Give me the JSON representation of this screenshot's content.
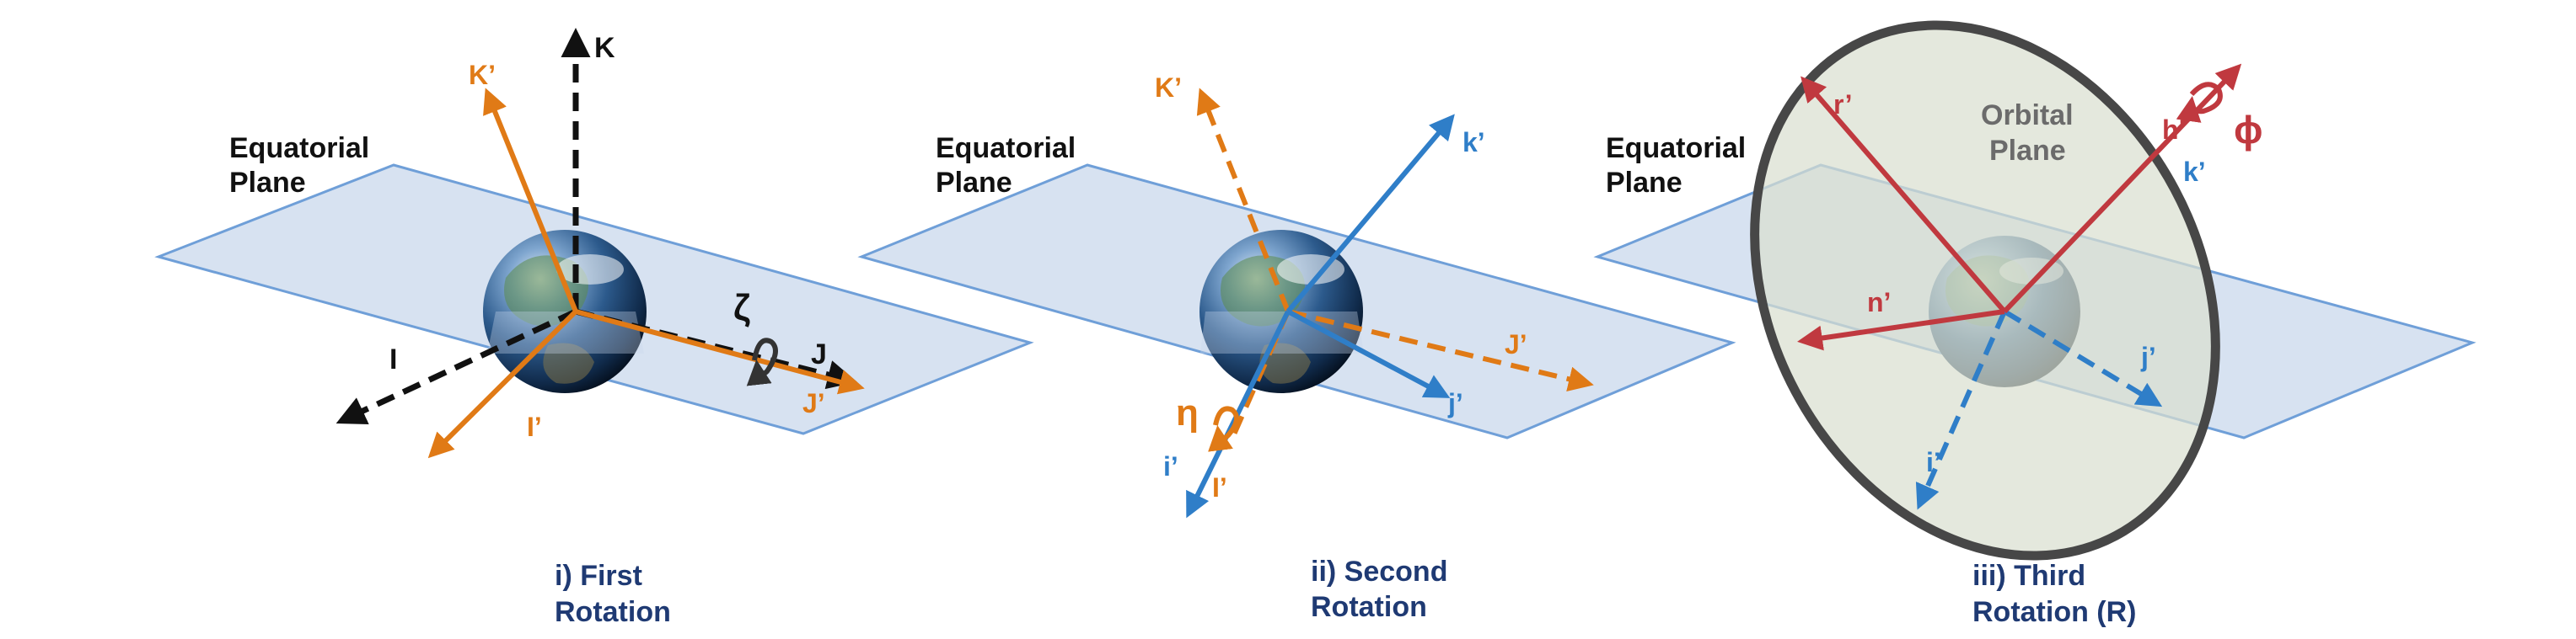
{
  "panels": [
    {
      "plane_label": [
        "Equatorial",
        "Plane"
      ],
      "caption": [
        "i) First",
        "Rotation"
      ],
      "axes": {
        "K": "K",
        "K_prime": "K’",
        "I": "I",
        "I_prime": "I’",
        "J": "J",
        "J_prime": "J’"
      },
      "angle": "ζ"
    },
    {
      "plane_label": [
        "Equatorial",
        "Plane"
      ],
      "caption": [
        "ii) Second",
        "Rotation"
      ],
      "axes": {
        "K_prime": "K’",
        "k_prime": "k’",
        "J_prime": "J’",
        "j_prime": "j’",
        "i_prime": "i’",
        "I_prime": "I’"
      },
      "angle": "η"
    },
    {
      "plane_label": [
        "Equatorial",
        "Plane"
      ],
      "orbital_label": [
        "Orbital",
        "Plane"
      ],
      "caption": [
        "iii) Third",
        "Rotation (R)"
      ],
      "axes": {
        "r_prime": "r’",
        "h_prime": "h’",
        "k_prime": "k’",
        "n_prime": "n’",
        "j_prime": "j’",
        "i_prime": "i’"
      },
      "angle": "ϕ"
    }
  ],
  "colors": {
    "black_axis": "#111111",
    "orange_axis": "#e07a16",
    "blue_axis": "#2f7ec8",
    "red_axis": "#c0393f",
    "plane_fill": "#c9d8ec",
    "plane_stroke": "#6f9fd8",
    "orbital_fill": "#d9dfd0",
    "orbital_stroke": "#474747",
    "caption": "#1f3a73"
  },
  "icons": [
    "earth-globe-icon",
    "rotation-arrow-icon"
  ]
}
